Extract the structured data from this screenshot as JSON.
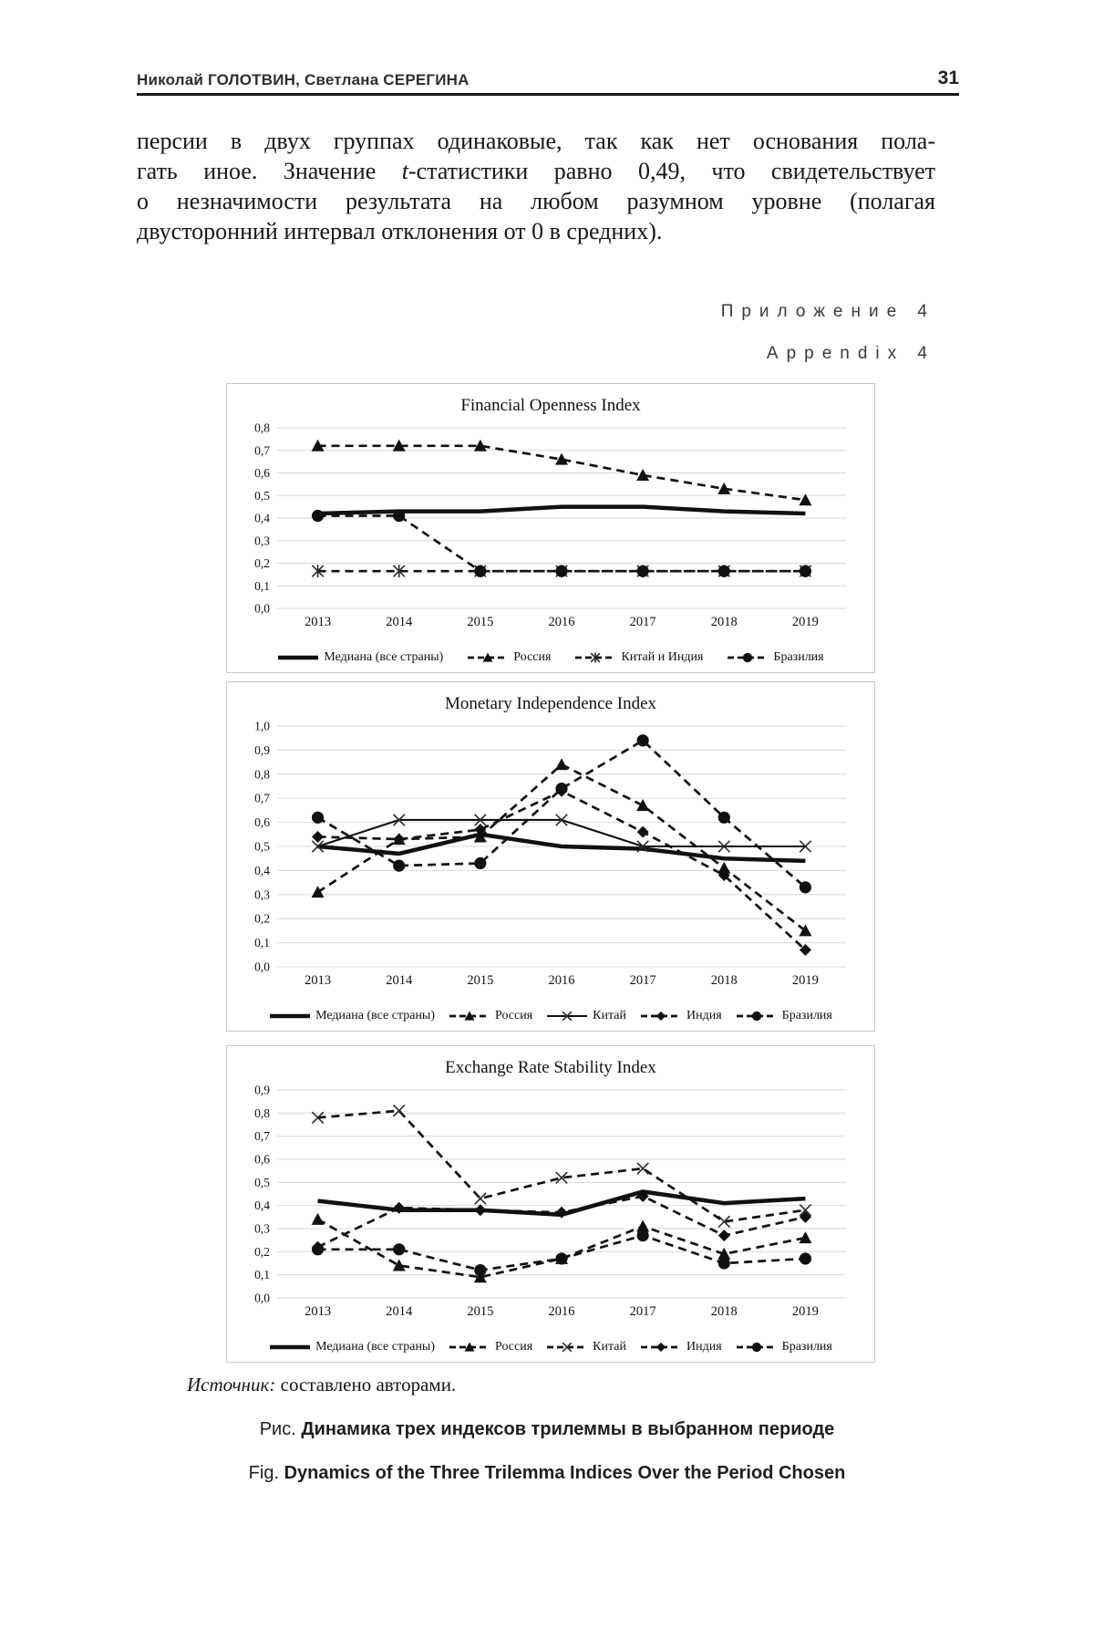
{
  "page": {
    "header": {
      "authors": "Николай ГОЛОТВИН, Светлана СЕРЕГИНА",
      "page_number": "31"
    },
    "paragraph": {
      "line1": "персии в двух группах одинаковые, так как нет основания пола-",
      "line2_pre": "гать иное. Значение ",
      "line2_italic": "t",
      "line2_post": "-статистики равно 0,49, что свидетельствует",
      "line3": "о незначимости результата на любом разумном уровне (полагая",
      "line4": "двусторонний интервал отклонения от 0 в средних)."
    },
    "appendix": {
      "ru": "Приложение 4",
      "en": "Appendix 4"
    },
    "source": {
      "label": "Источник:",
      "text": " составлено авторами."
    },
    "caption_ru": {
      "label": "Рис. ",
      "text": "Динамика трех индексов трилеммы в выбранном периоде"
    },
    "caption_en": {
      "label": "Fig. ",
      "text": "Dynamics of the Three Trilemma Indices Over the Period Chosen"
    }
  },
  "chart_data": [
    {
      "type": "line",
      "title": "Financial Openness Index",
      "x": [
        "2013",
        "2014",
        "2015",
        "2016",
        "2017",
        "2018",
        "2019"
      ],
      "ylim": [
        0,
        0.8
      ],
      "ytick_step": 0.1,
      "grid": true,
      "legend_position": "bottom",
      "decimal_comma": true,
      "series": [
        {
          "name": "Медиана (все страны)",
          "line": "solid-thick",
          "marker": "none",
          "values": [
            0.42,
            0.43,
            0.43,
            0.45,
            0.45,
            0.43,
            0.42
          ]
        },
        {
          "name": "Россия",
          "line": "dashed",
          "marker": "triangle",
          "values": [
            0.72,
            0.72,
            0.72,
            0.66,
            0.59,
            0.53,
            0.48
          ]
        },
        {
          "name": "Китай и Индия",
          "line": "dashed",
          "marker": "asterisk",
          "values": [
            0.165,
            0.165,
            0.165,
            0.165,
            0.165,
            0.165,
            0.165
          ]
        },
        {
          "name": "Бразилия",
          "line": "dashed",
          "marker": "circle",
          "values": [
            0.41,
            0.41,
            0.165,
            0.165,
            0.165,
            0.165,
            0.165
          ]
        }
      ]
    },
    {
      "type": "line",
      "title": "Monetary Independence Index",
      "x": [
        "2013",
        "2014",
        "2015",
        "2016",
        "2017",
        "2018",
        "2019"
      ],
      "ylim": [
        0,
        1.0
      ],
      "ytick_step": 0.1,
      "grid": true,
      "legend_position": "bottom",
      "decimal_comma": true,
      "series": [
        {
          "name": "Медиана (все страны)",
          "line": "solid-thick",
          "marker": "none",
          "values": [
            0.5,
            0.47,
            0.55,
            0.5,
            0.49,
            0.45,
            0.44
          ]
        },
        {
          "name": "Россия",
          "line": "dashed",
          "marker": "triangle",
          "values": [
            0.31,
            0.53,
            0.54,
            0.84,
            0.67,
            0.41,
            0.15
          ]
        },
        {
          "name": "Китай",
          "line": "solid-thin",
          "marker": "xcross",
          "values": [
            0.5,
            0.61,
            0.61,
            0.61,
            0.5,
            0.5,
            0.5
          ]
        },
        {
          "name": "Индия",
          "line": "dashed",
          "marker": "diamond",
          "values": [
            0.54,
            0.53,
            0.57,
            0.73,
            0.56,
            0.38,
            0.07
          ]
        },
        {
          "name": "Бразилия",
          "line": "dashed",
          "marker": "circle",
          "values": [
            0.62,
            0.42,
            0.43,
            0.74,
            0.94,
            0.62,
            0.33
          ]
        }
      ]
    },
    {
      "type": "line",
      "title": "Exchange Rate Stability Index",
      "x": [
        "2013",
        "2014",
        "2015",
        "2016",
        "2017",
        "2018",
        "2019"
      ],
      "ylim": [
        0,
        0.9
      ],
      "ytick_step": 0.1,
      "grid": true,
      "legend_position": "bottom",
      "decimal_comma": true,
      "series": [
        {
          "name": "Медиана (все страны)",
          "line": "solid-thick",
          "marker": "none",
          "values": [
            0.42,
            0.38,
            0.38,
            0.36,
            0.46,
            0.41,
            0.43
          ]
        },
        {
          "name": "Россия",
          "line": "dashed",
          "marker": "triangle",
          "values": [
            0.34,
            0.14,
            0.09,
            0.17,
            0.31,
            0.19,
            0.26
          ]
        },
        {
          "name": "Китай",
          "line": "dashed",
          "marker": "xcross",
          "values": [
            0.78,
            0.81,
            0.43,
            0.52,
            0.56,
            0.33,
            0.38
          ]
        },
        {
          "name": "Индия",
          "line": "dashed",
          "marker": "diamond",
          "values": [
            0.22,
            0.39,
            0.38,
            0.37,
            0.44,
            0.27,
            0.35
          ]
        },
        {
          "name": "Бразилия",
          "line": "dashed",
          "marker": "circle",
          "values": [
            0.21,
            0.21,
            0.12,
            0.17,
            0.27,
            0.15,
            0.17
          ]
        }
      ]
    }
  ]
}
